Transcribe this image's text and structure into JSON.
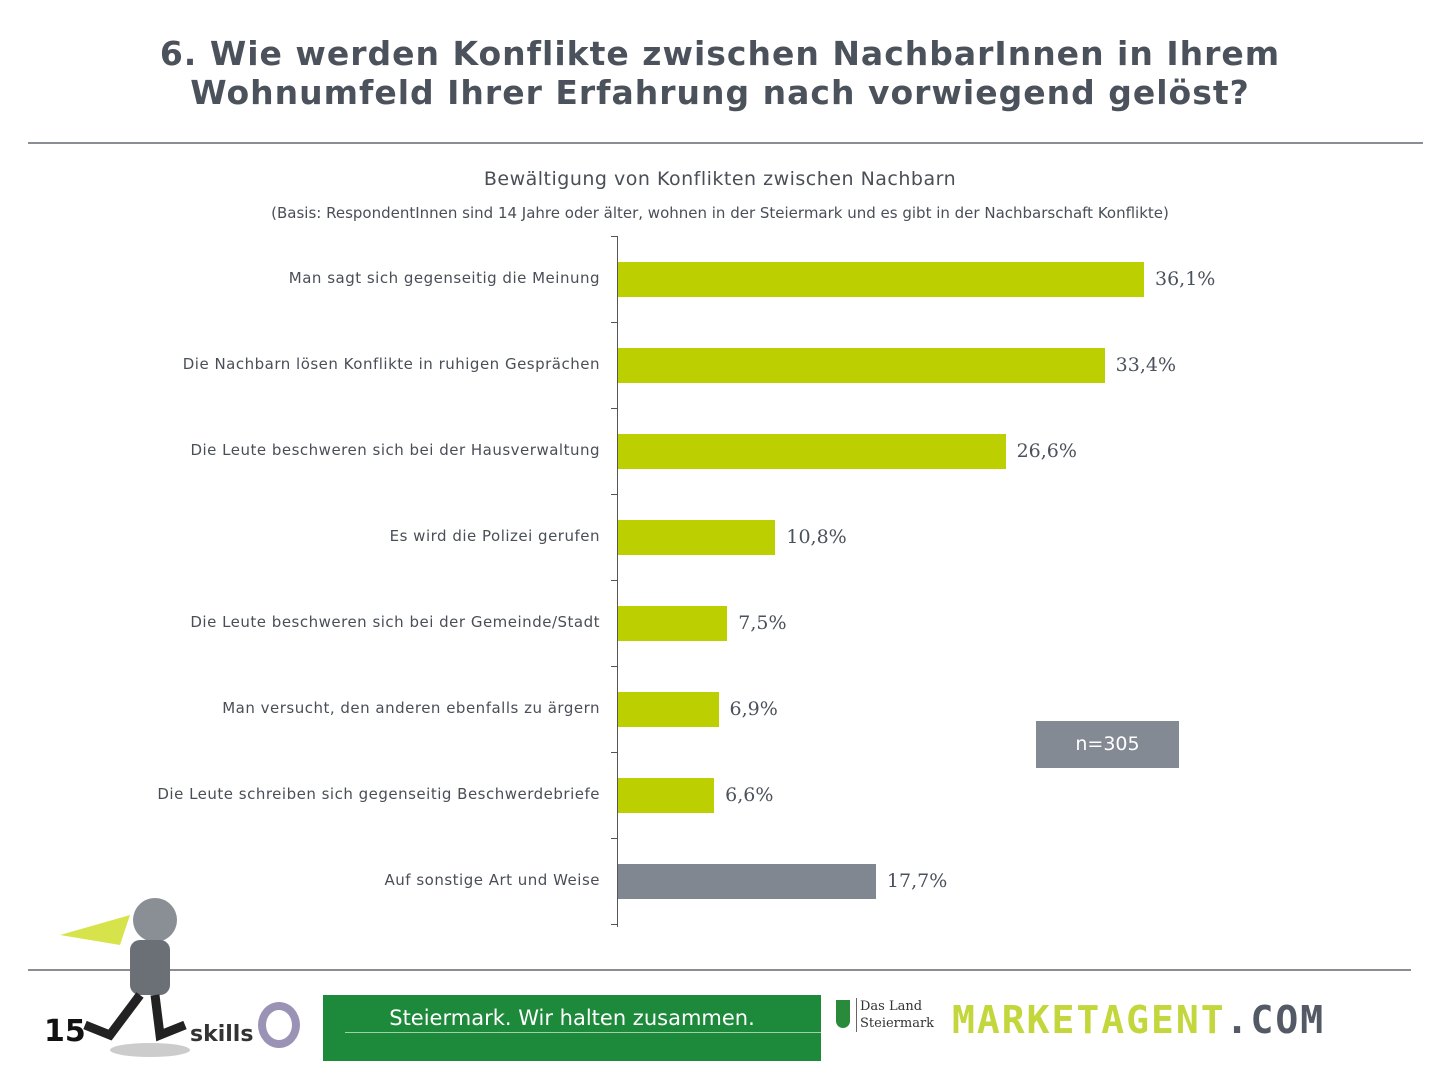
{
  "header": {
    "title_line1": "6. Wie werden Konflikte zwischen NachbarInnen in Ihrem",
    "title_line2": "Wohnumfeld Ihrer Erfahrung nach vorwiegend gelöst?"
  },
  "chart_data": {
    "type": "bar",
    "orientation": "horizontal",
    "title": "Bewältigung von Konflikten zwischen Nachbarn",
    "subtitle": "(Basis: RespondentInnen sind 14 Jahre oder älter, wohnen in der Steiermark und es gibt in der Nachbarschaft Konflikte)",
    "categories": [
      "Man sagt sich gegenseitig die Meinung",
      "Die Nachbarn lösen Konflikte in ruhigen Gesprächen",
      "Die Leute beschweren sich bei der Hausverwaltung",
      "Es wird die Polizei gerufen",
      "Die Leute beschweren sich bei der Gemeinde/Stadt",
      "Man versucht, den anderen ebenfalls zu ärgern",
      "Die Leute schreiben sich gegenseitig Beschwerdebriefe",
      "Auf sonstige Art und Weise"
    ],
    "values": [
      36.1,
      33.4,
      26.6,
      10.8,
      7.5,
      6.9,
      6.6,
      17.7
    ],
    "labels": [
      "36,1%",
      "33,4%",
      "26,6%",
      "10,8%",
      "7,5%",
      "6,9%",
      "6,6%",
      "17,7%"
    ],
    "colors": [
      "#bccf00",
      "#bccf00",
      "#bccf00",
      "#bccf00",
      "#bccf00",
      "#bccf00",
      "#bccf00",
      "#808790"
    ],
    "xlim": [
      0,
      50
    ],
    "grid": false,
    "sample": "n=305"
  },
  "footer": {
    "page": "15",
    "skills": "skills",
    "slogan": "Steiermark. Wir halten zusammen.",
    "land1": "Das Land",
    "land2": "Steiermark",
    "brand_main": "MARKETAGENT",
    "brand_tld": ".COM"
  }
}
